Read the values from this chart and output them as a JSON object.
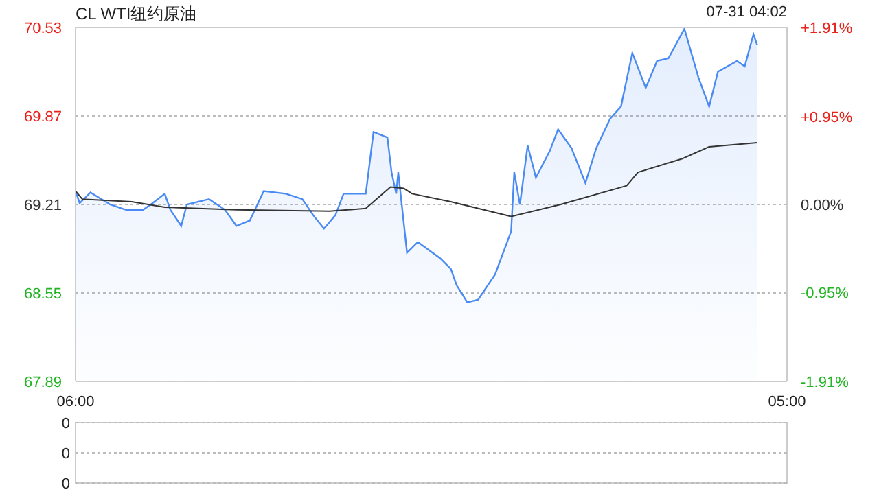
{
  "chart_data": [
    {
      "type": "area",
      "title": "CL WTI纽约原油",
      "annotations": [
        "07-31 04:02"
      ],
      "xlim": [
        "--07-30T06:00",
        "--07-31T05:00"
      ],
      "xticks": [
        {
          "value": "--07-30T06:00",
          "label": "06:00"
        },
        {
          "value": "--07-31T05:00",
          "label": "05:00"
        }
      ],
      "ylim": [
        67.89,
        70.53
      ],
      "yticks": [
        67.89,
        68.55,
        69.21,
        69.87,
        70.53
      ],
      "y2lim": [
        -1.91,
        1.91
      ],
      "y2ticks": [
        {
          "value": -1.91,
          "label": "-1.91%"
        },
        {
          "value": -0.95,
          "label": "-0.95%"
        },
        {
          "value": 0,
          "label": "0.00%"
        },
        {
          "value": 0.95,
          "label": "+0.95%"
        },
        {
          "value": 1.91,
          "label": "+1.91%"
        }
      ],
      "grid": "y",
      "series": [
        {
          "type": "area",
          "color": "#4a8af4",
          "x": [
            "--07-30T06:00",
            "--07-30T06:08",
            "--07-30T06:29",
            "--07-30T07:07",
            "--07-30T07:38",
            "--07-30T08:11",
            "--07-30T08:26",
            "--07-30T08:53",
            "--07-30T09:04",
            "--07-30T09:25",
            "--07-30T09:36",
            "--07-30T10:19",
            "--07-30T10:50",
            "--07-30T11:12",
            "--07-30T11:38",
            "--07-30T12:05",
            "--07-30T12:48",
            "--07-30T13:20",
            "--07-30T13:41",
            "--07-30T14:02",
            "--07-30T14:24",
            "--07-30T14:40",
            "--07-30T15:23",
            "--07-30T15:38",
            "--07-30T16:05",
            "--07-30T16:13",
            "--07-30T16:22",
            "--07-30T16:26",
            "--07-30T16:43",
            "--07-30T17:04",
            "--07-30T17:47",
            "--07-30T18:08",
            "--07-30T18:19",
            "--07-30T18:40",
            "--07-30T19:01",
            "--07-30T19:34",
            "--07-30T20:05",
            "--07-30T20:11",
            "--07-30T20:22",
            "--07-30T20:37",
            "--07-30T20:53",
            "--07-30T21:20",
            "--07-30T21:36",
            "--07-30T22:02",
            "--07-30T22:29",
            "--07-30T22:50",
            "--07-30T23:17",
            "--07-30T23:38",
            "--07-31T00:00",
            "--07-31T00:26",
            "--07-31T00:48",
            "--07-31T01:10",
            "--07-31T01:41",
            "--07-31T02:08",
            "--07-31T02:29",
            "--07-31T02:46",
            "--07-31T03:23",
            "--07-31T03:38",
            "--07-31T03:55",
            "--07-31T04:02"
          ],
          "values": [
            69.31,
            69.22,
            69.3,
            69.21,
            69.17,
            69.17,
            69.21,
            69.29,
            69.17,
            69.05,
            69.21,
            69.25,
            69.17,
            69.05,
            69.09,
            69.31,
            69.29,
            69.25,
            69.13,
            69.03,
            69.13,
            69.29,
            69.29,
            69.75,
            69.71,
            69.45,
            69.29,
            69.45,
            68.85,
            68.93,
            68.81,
            68.73,
            68.61,
            68.48,
            68.5,
            68.69,
            69.01,
            69.45,
            69.21,
            69.65,
            69.41,
            69.61,
            69.77,
            69.63,
            69.37,
            69.63,
            69.85,
            69.94,
            70.34,
            70.08,
            70.28,
            70.3,
            70.52,
            70.16,
            69.94,
            70.2,
            70.28,
            70.24,
            70.48,
            70.4
          ]
        },
        {
          "type": "line",
          "color": "#333333",
          "x": [
            "--07-30T06:00",
            "--07-30T06:13",
            "--07-30T07:49",
            "--07-30T08:53",
            "--07-30T11:12",
            "--07-30T14:13",
            "--07-30T15:23",
            "--07-30T16:11",
            "--07-30T16:37",
            "--07-30T16:53",
            "--07-30T18:08",
            "--07-30T20:05",
            "--07-30T21:41",
            "--07-30T23:49",
            "--07-31T00:11",
            "--07-31T01:36",
            "--07-31T02:29",
            "--07-31T04:02"
          ],
          "values": [
            69.31,
            69.25,
            69.23,
            69.19,
            69.17,
            69.16,
            69.18,
            69.34,
            69.33,
            69.29,
            69.23,
            69.12,
            69.21,
            69.35,
            69.45,
            69.55,
            69.64,
            69.67
          ]
        }
      ]
    },
    {
      "type": "other",
      "annotations": [
        "0",
        "0",
        "0"
      ]
    }
  ]
}
